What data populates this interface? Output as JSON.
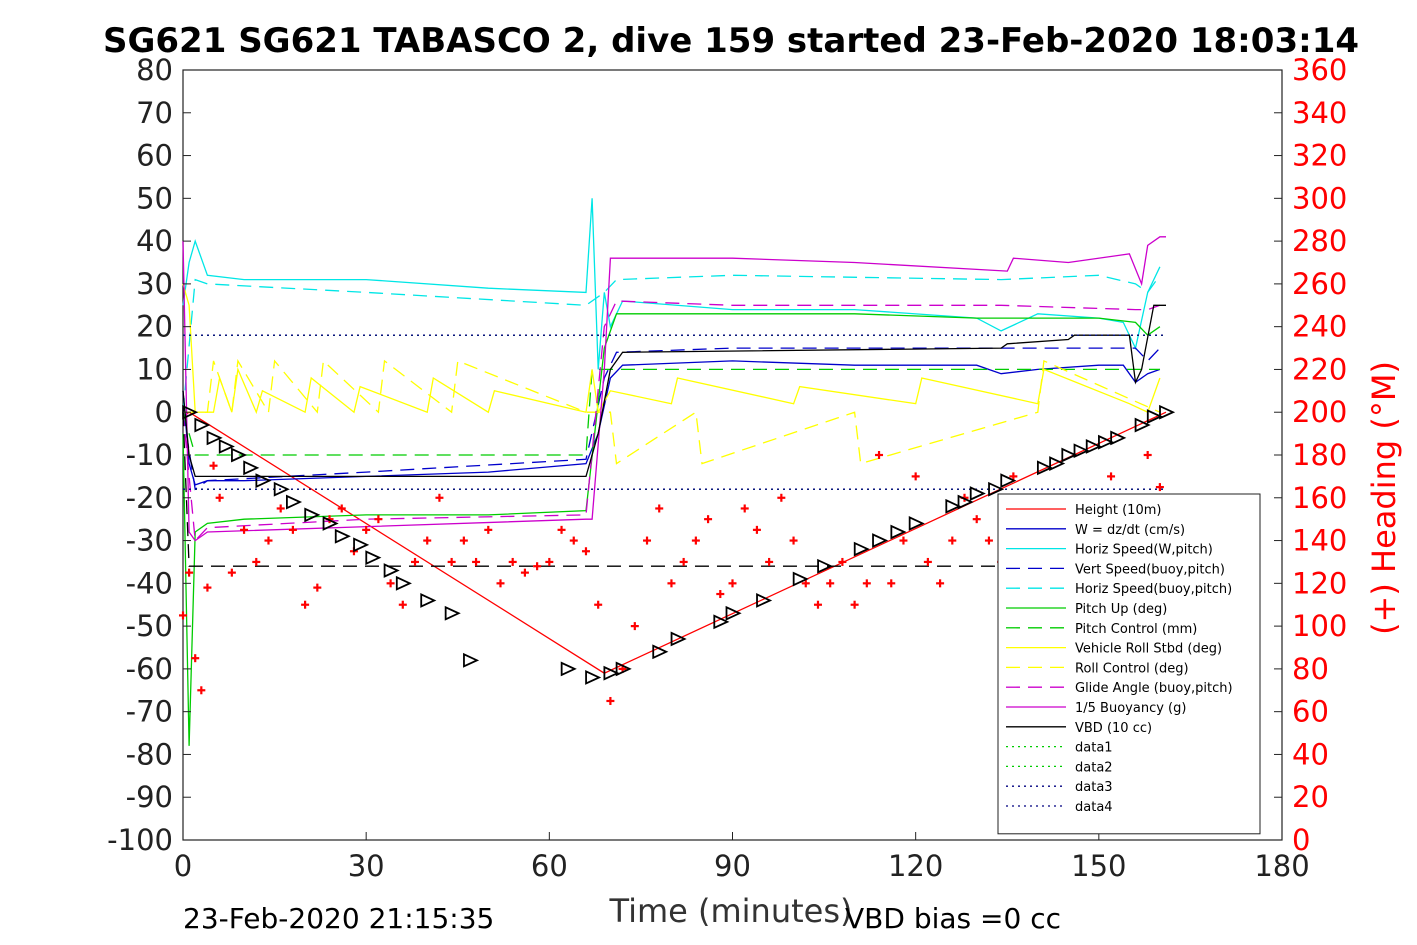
{
  "chart_data": {
    "type": "line",
    "title": "SG621 SG621 TABASCO 2, dive 159 started 23-Feb-2020 18:03:14",
    "xlabel": "Time (minutes)",
    "ylabel_right": "(+) Heading (°M)",
    "footer_left": "23-Feb-2020 21:15:35",
    "footer_right": "VBD bias =0 cc",
    "xlim": [
      0,
      180
    ],
    "ylim": [
      -100,
      80
    ],
    "ylim_right": [
      0,
      360
    ],
    "x_ticks": [
      "0",
      "30",
      "60",
      "90",
      "120",
      "150",
      "180"
    ],
    "y_ticks": [
      "80",
      "70",
      "60",
      "50",
      "40",
      "30",
      "20",
      "10",
      "0",
      "-10",
      "-20",
      "-30",
      "-40",
      "-50",
      "-60",
      "-70",
      "-80",
      "-90",
      "-100"
    ],
    "y_ticks_right": [
      "360",
      "340",
      "320",
      "300",
      "280",
      "260",
      "240",
      "220",
      "200",
      "180",
      "160",
      "140",
      "120",
      "100",
      "80",
      "60",
      "40",
      "20",
      "0"
    ],
    "grid": false,
    "legend_placement": "bottom-right",
    "series": [
      {
        "name": "Height (10m)",
        "color": "#ff0000",
        "style": "solid",
        "x": [
          0,
          1,
          69,
          161
        ],
        "y": [
          -1,
          0,
          -61,
          0
        ]
      },
      {
        "name": "W = dz/dt (cm/s)",
        "color": "#0000cc",
        "style": "solid",
        "x": [
          0,
          1,
          2,
          4,
          10,
          30,
          50,
          66,
          68,
          70,
          72,
          90,
          110,
          130,
          134,
          140,
          150,
          154,
          156,
          158,
          160
        ],
        "y": [
          5,
          -12,
          -17,
          -16,
          -16,
          -15,
          -14,
          -12,
          -5,
          8,
          11,
          12,
          11,
          11,
          9,
          10,
          11,
          11,
          7,
          9,
          10
        ]
      },
      {
        "name": "Horiz Speed(W,pitch)",
        "color": "#00e6e6",
        "style": "solid",
        "x": [
          0,
          1,
          2,
          4,
          10,
          30,
          50,
          66,
          67,
          68,
          69,
          70,
          72,
          90,
          110,
          130,
          134,
          140,
          150,
          154,
          156,
          158,
          160
        ],
        "y": [
          25,
          35,
          40,
          32,
          31,
          31,
          29,
          28,
          50,
          10,
          28,
          20,
          26,
          24,
          24,
          22,
          19,
          23,
          22,
          21,
          15,
          28,
          34
        ]
      },
      {
        "name": "Vert Speed(buoy,pitch)",
        "color": "#0000cc",
        "style": "dashed",
        "x": [
          0,
          2,
          4,
          30,
          66,
          69,
          71,
          90,
          134,
          156,
          158,
          160
        ],
        "y": [
          0,
          -18,
          -16,
          -14,
          -11,
          8,
          14,
          15,
          15,
          15,
          12,
          15
        ]
      },
      {
        "name": "Horiz Speed(buoy,pitch)",
        "color": "#00e6e6",
        "style": "dashed",
        "x": [
          0,
          2,
          4,
          30,
          66,
          69,
          71,
          90,
          134,
          150,
          156,
          158,
          160
        ],
        "y": [
          0,
          31,
          30,
          28,
          25,
          28,
          31,
          32,
          31,
          32,
          30,
          28,
          32
        ]
      },
      {
        "name": "Pitch Up (deg)",
        "color": "#00cc00",
        "style": "solid",
        "x": [
          0,
          1,
          2,
          4,
          10,
          30,
          50,
          66,
          69,
          71,
          90,
          110,
          130,
          150,
          156,
          158,
          160
        ],
        "y": [
          -5,
          -78,
          -28,
          -26,
          -25,
          -24,
          -24,
          -23,
          15,
          23,
          23,
          23,
          22,
          22,
          21,
          18,
          20
        ]
      },
      {
        "name": "Pitch Control (mm)",
        "color": "#00cc00",
        "style": "dashed",
        "x": [
          0,
          2,
          66,
          67,
          71,
          160
        ],
        "y": [
          0,
          -10,
          -10,
          10,
          10,
          10
        ]
      },
      {
        "name": "Vehicle Roll Stbd (deg)",
        "color": "#ffff00",
        "style": "solid",
        "x": [
          0,
          1,
          2,
          5,
          6,
          8,
          9,
          12,
          13,
          20,
          21,
          28,
          29,
          40,
          41,
          50,
          51,
          66,
          67,
          68,
          70,
          80,
          81,
          100,
          101,
          120,
          121,
          140,
          141,
          155,
          158,
          160
        ],
        "y": [
          30,
          25,
          0,
          0,
          8,
          0,
          10,
          0,
          5,
          0,
          8,
          0,
          6,
          0,
          8,
          0,
          5,
          0,
          10,
          0,
          5,
          2,
          8,
          2,
          6,
          2,
          8,
          2,
          10,
          2,
          0,
          8
        ]
      },
      {
        "name": "Roll Control (deg)",
        "color": "#ffff00",
        "style": "dashed",
        "x": [
          0,
          4,
          5,
          8,
          9,
          14,
          15,
          22,
          23,
          32,
          33,
          44,
          45,
          66,
          70,
          71,
          84,
          85,
          110,
          111,
          140,
          141,
          160
        ],
        "y": [
          0,
          0,
          12,
          0,
          12,
          0,
          12,
          0,
          12,
          0,
          12,
          0,
          12,
          0,
          0,
          -12,
          0,
          -12,
          0,
          -12,
          0,
          12,
          0
        ]
      },
      {
        "name": "Glide Angle (buoy,pitch)",
        "color": "#cc00cc",
        "style": "dashed",
        "x": [
          0,
          2,
          4,
          30,
          66,
          69,
          71,
          90,
          134,
          156,
          158,
          160
        ],
        "y": [
          0,
          -30,
          -27,
          -25,
          -24,
          20,
          26,
          25,
          25,
          24,
          24,
          25
        ]
      },
      {
        "name": "1/5 Buoyancy (g)",
        "color": "#cc00cc",
        "style": "solid",
        "x": [
          0,
          1,
          2,
          4,
          66,
          67,
          69,
          70,
          90,
          110,
          135,
          136,
          145,
          155,
          157,
          158,
          160,
          161
        ],
        "y": [
          40,
          -28,
          -30,
          -28,
          -25,
          -25,
          10,
          36,
          36,
          35,
          33,
          36,
          35,
          37,
          30,
          39,
          41,
          41
        ]
      },
      {
        "name": "VBD (10 cc)",
        "color": "#000000",
        "style": "solid",
        "x": [
          0,
          1,
          2,
          66,
          68,
          70,
          72,
          134,
          135,
          145,
          146,
          155,
          156,
          157,
          159,
          161
        ],
        "y": [
          5,
          -10,
          -15,
          -15,
          -5,
          10,
          14,
          15,
          16,
          17,
          18,
          18,
          7,
          10,
          25,
          25
        ]
      },
      {
        "name": "data1",
        "color": "#00cc00",
        "style": "dotted",
        "x": [
          0,
          161
        ],
        "y": [
          18,
          18
        ]
      },
      {
        "name": "data2",
        "color": "#00cc00",
        "style": "dotted",
        "x": [
          0,
          161
        ],
        "y": [
          -18,
          -18
        ]
      },
      {
        "name": "data3",
        "color": "#000080",
        "style": "dotted",
        "x": [
          0,
          161
        ],
        "y": [
          18,
          18
        ]
      },
      {
        "name": "data4",
        "color": "#000080",
        "style": "dotted",
        "x": [
          0,
          161
        ],
        "y": [
          -18,
          -18
        ]
      }
    ],
    "black_series": {
      "color": "#000000",
      "style": "dashed",
      "x": [
        0,
        1,
        160
      ],
      "y": [
        0,
        -36,
        -36
      ]
    },
    "heading": {
      "color": "#ff0000",
      "marker": "+",
      "axis": "right",
      "x": [
        0,
        1,
        2,
        3,
        4,
        5,
        6,
        8,
        10,
        12,
        14,
        16,
        18,
        20,
        22,
        24,
        26,
        28,
        30,
        32,
        34,
        36,
        38,
        40,
        42,
        44,
        46,
        48,
        50,
        52,
        54,
        56,
        58,
        60,
        62,
        64,
        66,
        68,
        70,
        72,
        74,
        76,
        78,
        80,
        82,
        84,
        86,
        88,
        90,
        92,
        94,
        96,
        98,
        100,
        102,
        104,
        106,
        108,
        110,
        112,
        114,
        116,
        118,
        120,
        122,
        124,
        126,
        128,
        130,
        132,
        134,
        136,
        138,
        140,
        142,
        144,
        146,
        148,
        150,
        152,
        154,
        156,
        158,
        160
      ],
      "y": [
        105,
        125,
        85,
        70,
        118,
        175,
        160,
        125,
        145,
        130,
        140,
        155,
        145,
        110,
        118,
        150,
        155,
        135,
        145,
        150,
        120,
        110,
        130,
        140,
        160,
        130,
        140,
        130,
        145,
        120,
        130,
        125,
        128,
        130,
        145,
        140,
        135,
        110,
        65,
        80,
        100,
        140,
        155,
        120,
        130,
        140,
        150,
        115,
        120,
        155,
        145,
        130,
        160,
        140,
        120,
        110,
        120,
        130,
        110,
        120,
        180,
        120,
        140,
        170,
        130,
        120,
        140,
        160,
        150,
        140,
        130,
        170,
        150,
        160,
        140,
        130,
        140,
        150,
        160,
        170,
        155,
        75,
        180,
        165
      ]
    },
    "triangles": {
      "color": "#000000",
      "x": [
        1,
        3,
        5,
        7,
        9,
        11,
        13,
        16,
        18,
        21,
        24,
        26,
        29,
        31,
        34,
        36,
        40,
        44,
        47,
        63,
        67,
        70,
        72,
        78,
        81,
        88,
        90,
        95,
        101,
        105,
        111,
        114,
        117,
        120,
        126,
        128,
        130,
        133,
        135,
        141,
        143,
        145,
        147,
        149,
        151,
        153,
        157,
        159,
        161
      ],
      "y": [
        0,
        -3,
        -6,
        -8,
        -10,
        -13,
        -16,
        -18,
        -21,
        -24,
        -26,
        -29,
        -31,
        -34,
        -37,
        -40,
        -44,
        -47,
        -58,
        -60,
        -62,
        -61,
        -60,
        -56,
        -53,
        -49,
        -47,
        -44,
        -39,
        -36,
        -32,
        -30,
        -28,
        -26,
        -22,
        -21,
        -19,
        -18,
        -16,
        -13,
        -12,
        -10,
        -9,
        -8,
        -7,
        -6,
        -3,
        -1,
        0
      ]
    }
  }
}
